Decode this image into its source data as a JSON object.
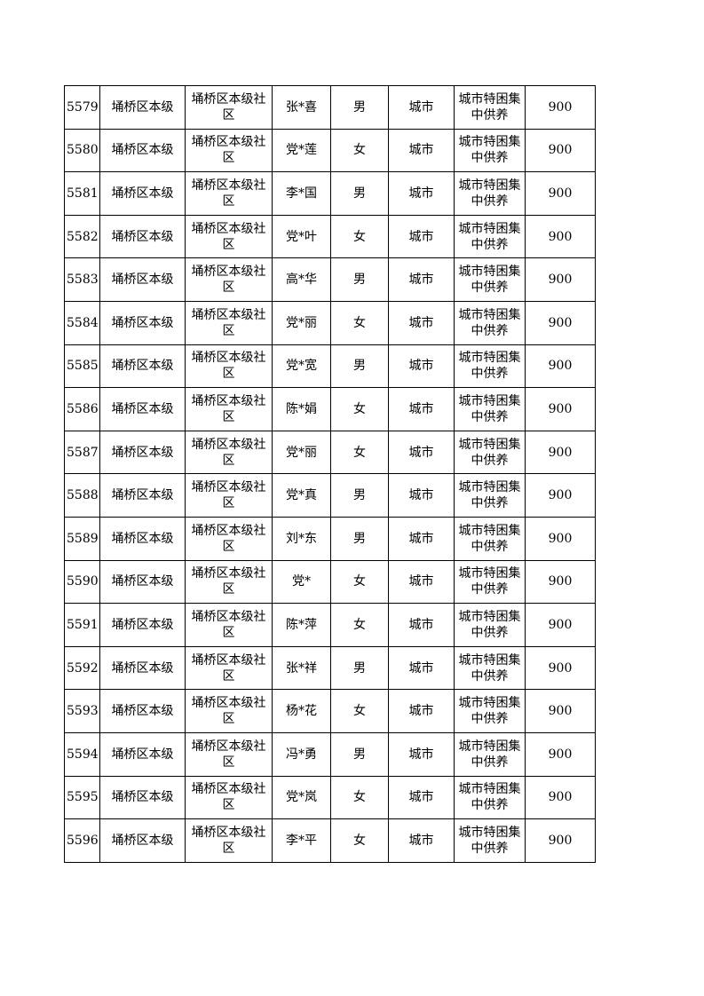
{
  "table": {
    "rows": [
      {
        "id": "5579",
        "district": "埇桥区本级",
        "community": "埇桥区本级社区",
        "name": "张*喜",
        "gender": "男",
        "area": "城市",
        "type": "城市特困集中供养",
        "amount": "900"
      },
      {
        "id": "5580",
        "district": "埇桥区本级",
        "community": "埇桥区本级社区",
        "name": "党*莲",
        "gender": "女",
        "area": "城市",
        "type": "城市特困集中供养",
        "amount": "900"
      },
      {
        "id": "5581",
        "district": "埇桥区本级",
        "community": "埇桥区本级社区",
        "name": "李*国",
        "gender": "男",
        "area": "城市",
        "type": "城市特困集中供养",
        "amount": "900"
      },
      {
        "id": "5582",
        "district": "埇桥区本级",
        "community": "埇桥区本级社区",
        "name": "党*叶",
        "gender": "女",
        "area": "城市",
        "type": "城市特困集中供养",
        "amount": "900"
      },
      {
        "id": "5583",
        "district": "埇桥区本级",
        "community": "埇桥区本级社区",
        "name": "高*华",
        "gender": "男",
        "area": "城市",
        "type": "城市特困集中供养",
        "amount": "900"
      },
      {
        "id": "5584",
        "district": "埇桥区本级",
        "community": "埇桥区本级社区",
        "name": "党*丽",
        "gender": "女",
        "area": "城市",
        "type": "城市特困集中供养",
        "amount": "900"
      },
      {
        "id": "5585",
        "district": "埇桥区本级",
        "community": "埇桥区本级社区",
        "name": "党*宽",
        "gender": "男",
        "area": "城市",
        "type": "城市特困集中供养",
        "amount": "900"
      },
      {
        "id": "5586",
        "district": "埇桥区本级",
        "community": "埇桥区本级社区",
        "name": "陈*娟",
        "gender": "女",
        "area": "城市",
        "type": "城市特困集中供养",
        "amount": "900"
      },
      {
        "id": "5587",
        "district": "埇桥区本级",
        "community": "埇桥区本级社区",
        "name": "党*丽",
        "gender": "女",
        "area": "城市",
        "type": "城市特困集中供养",
        "amount": "900"
      },
      {
        "id": "5588",
        "district": "埇桥区本级",
        "community": "埇桥区本级社区",
        "name": "党*真",
        "gender": "男",
        "area": "城市",
        "type": "城市特困集中供养",
        "amount": "900"
      },
      {
        "id": "5589",
        "district": "埇桥区本级",
        "community": "埇桥区本级社区",
        "name": "刘*东",
        "gender": "男",
        "area": "城市",
        "type": "城市特困集中供养",
        "amount": "900"
      },
      {
        "id": "5590",
        "district": "埇桥区本级",
        "community": "埇桥区本级社区",
        "name": "党*",
        "gender": "女",
        "area": "城市",
        "type": "城市特困集中供养",
        "amount": "900"
      },
      {
        "id": "5591",
        "district": "埇桥区本级",
        "community": "埇桥区本级社区",
        "name": "陈*萍",
        "gender": "女",
        "area": "城市",
        "type": "城市特困集中供养",
        "amount": "900"
      },
      {
        "id": "5592",
        "district": "埇桥区本级",
        "community": "埇桥区本级社区",
        "name": "张*祥",
        "gender": "男",
        "area": "城市",
        "type": "城市特困集中供养",
        "amount": "900"
      },
      {
        "id": "5593",
        "district": "埇桥区本级",
        "community": "埇桥区本级社区",
        "name": "杨*花",
        "gender": "女",
        "area": "城市",
        "type": "城市特困集中供养",
        "amount": "900"
      },
      {
        "id": "5594",
        "district": "埇桥区本级",
        "community": "埇桥区本级社区",
        "name": "冯*勇",
        "gender": "男",
        "area": "城市",
        "type": "城市特困集中供养",
        "amount": "900"
      },
      {
        "id": "5595",
        "district": "埇桥区本级",
        "community": "埇桥区本级社区",
        "name": "党*岚",
        "gender": "女",
        "area": "城市",
        "type": "城市特困集中供养",
        "amount": "900"
      },
      {
        "id": "5596",
        "district": "埇桥区本级",
        "community": "埇桥区本级社区",
        "name": "李*平",
        "gender": "女",
        "area": "城市",
        "type": "城市特困集中供养",
        "amount": "900"
      }
    ]
  }
}
